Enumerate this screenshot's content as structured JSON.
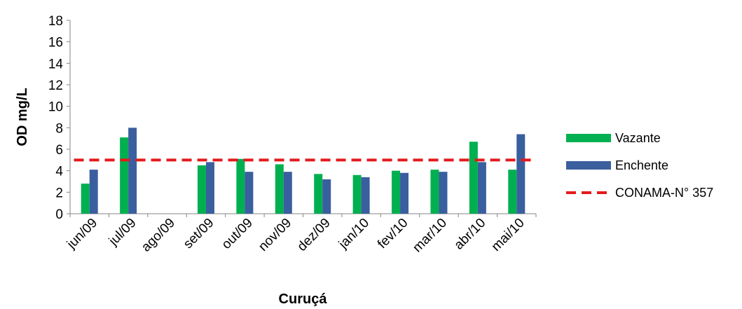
{
  "chart_data": {
    "type": "bar",
    "title": "",
    "xlabel": "Curuçá",
    "ylabel": "OD  mg/L",
    "ylim": [
      0,
      18
    ],
    "yticks": [
      0,
      2,
      4,
      6,
      8,
      10,
      12,
      14,
      16,
      18
    ],
    "grid": false,
    "legend_position": "right",
    "categories": [
      "jun/09",
      "jul/09",
      "ago/09",
      "set/09",
      "out/09",
      "nov/09",
      "dez/09",
      "jan/10",
      "fev/10",
      "mar/10",
      "abr/10",
      "mai/10"
    ],
    "series": [
      {
        "name": "Vazante",
        "color": "#00b050",
        "values": [
          2.8,
          7.1,
          null,
          4.5,
          5.1,
          4.6,
          3.7,
          3.6,
          4.0,
          4.1,
          6.7,
          4.1
        ]
      },
      {
        "name": "Enchente",
        "color": "#3a5f9e",
        "values": [
          4.1,
          8.0,
          null,
          4.8,
          3.9,
          3.9,
          3.2,
          3.4,
          3.8,
          3.9,
          4.8,
          7.4
        ]
      }
    ],
    "reference_line": {
      "name": "CONAMA-N° 357",
      "value": 5,
      "color": "#e31a1c",
      "style": "dashed"
    }
  }
}
